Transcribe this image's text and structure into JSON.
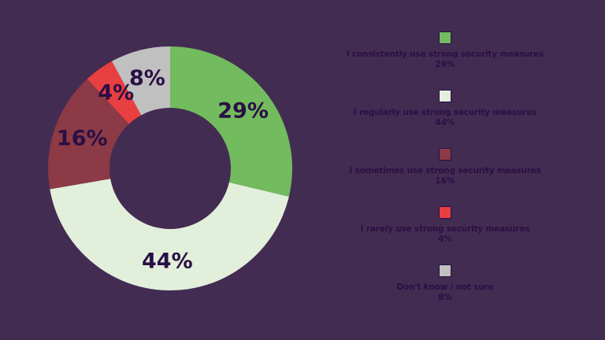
{
  "chart_data": {
    "type": "pie",
    "subtype": "donut",
    "title": "",
    "categories": [
      "I consistently use strong security measures",
      "I regularly use strong security measures",
      "I sometimes use strong security measures",
      "I rarely use strong security measures",
      "Don't know / not sure"
    ],
    "values": [
      29,
      44,
      16,
      4,
      8
    ],
    "labels": [
      "29%",
      "44%",
      "16%",
      "4%",
      "8%"
    ],
    "colors": [
      "#72bb5e",
      "#e2efdb",
      "#8b3a46",
      "#e83f40",
      "#c0c0c0"
    ],
    "legend_position": "right",
    "start_angle": "12 o'clock, clockwise"
  },
  "legend": [
    {
      "label": "I consistently use strong security measures",
      "value": "29%",
      "color": "#72bb5e"
    },
    {
      "label": "I regularly use strong security measures",
      "value": "44%",
      "color": "#e2efdb"
    },
    {
      "label": "I sometimes use strong security measures",
      "value": "16%",
      "color": "#8b3a46"
    },
    {
      "label": "I rarely use strong security measures",
      "value": "4%",
      "color": "#e83f40"
    },
    {
      "label": "Don't know / not sure",
      "value": "8%",
      "color": "#c0c0c0"
    }
  ],
  "colors": {
    "background": "#432c52",
    "text": "#2a0f45"
  }
}
